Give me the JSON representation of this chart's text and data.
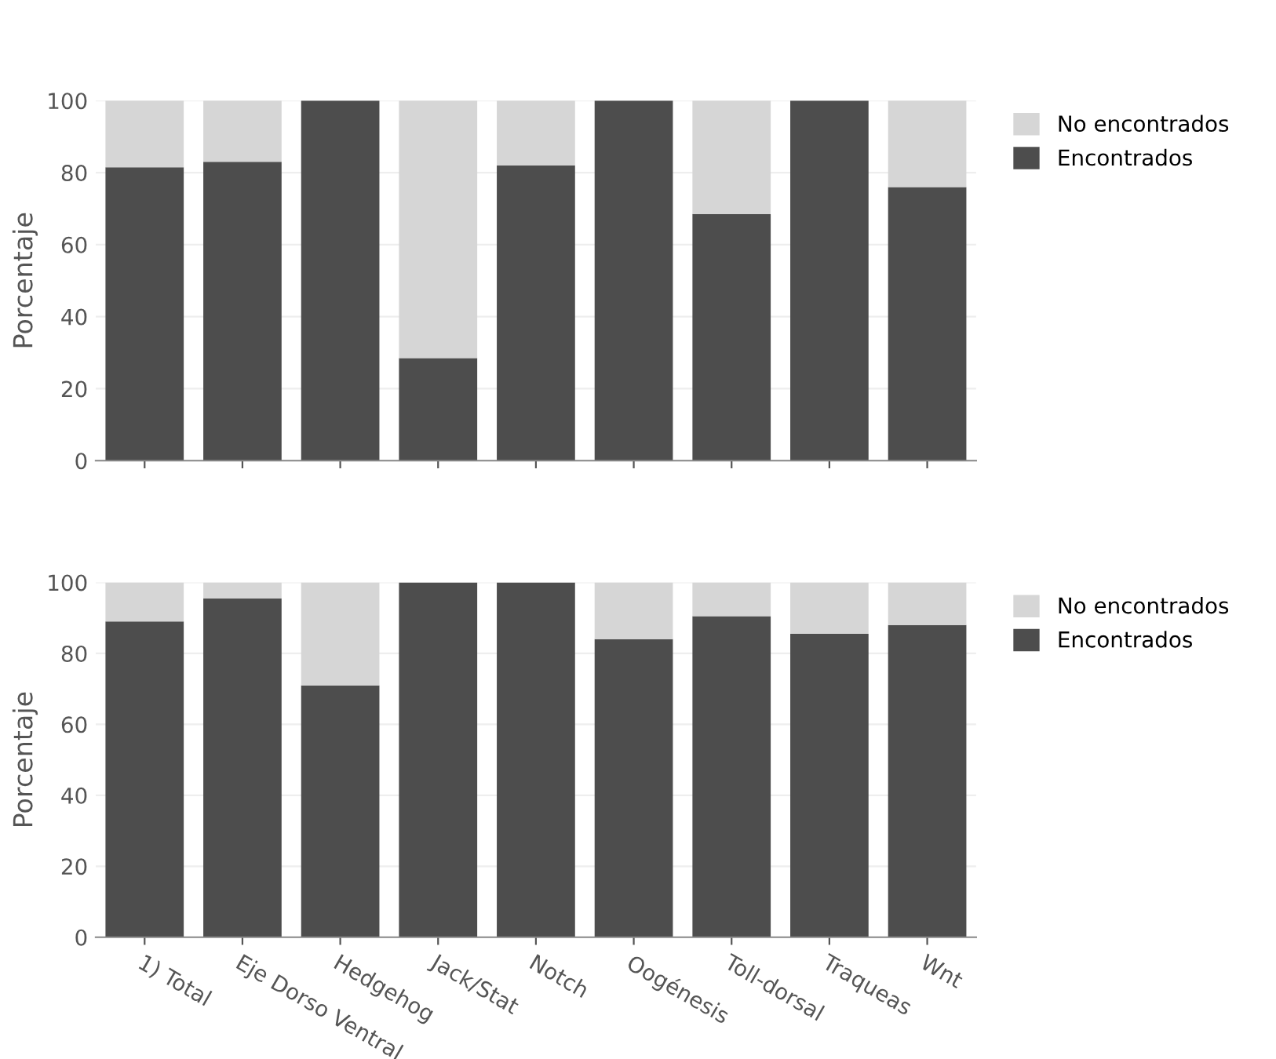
{
  "chart_data": [
    {
      "type": "bar",
      "stacked": true,
      "ylabel": "Porcentaje",
      "categories": [
        null,
        null,
        null,
        null,
        null,
        null,
        null,
        null,
        null
      ],
      "ylim": [
        0,
        100
      ],
      "yticks": [
        0,
        20,
        40,
        60,
        80,
        100
      ],
      "grid": "y",
      "legend": "top right",
      "tick_labels": "y",
      "series": [
        {
          "name": "Encontrados",
          "color": "#4d4d4d",
          "values": [
            81.5,
            83,
            100,
            28.5,
            82,
            100,
            68.5,
            100,
            76
          ]
        },
        {
          "name": "No encontrados",
          "color": "#d6d6d6",
          "values": [
            18.5,
            17,
            0,
            71.5,
            18,
            0,
            31.5,
            0,
            24
          ]
        }
      ]
    },
    {
      "type": "bar",
      "stacked": true,
      "ylabel": "Porcentaje",
      "categories": [
        "1) Total",
        "Eje Dorso Ventral",
        "Hedgehog",
        "Jack/Stat",
        "Notch",
        "Oogénesis",
        "Toll-dorsal",
        "Traqueas",
        "Wnt"
      ],
      "ylim": [
        0,
        100
      ],
      "yticks": [
        0,
        20,
        40,
        60,
        80,
        100
      ],
      "grid": "y",
      "legend": "top right",
      "series": [
        {
          "name": "Encontrados",
          "color": "#4d4d4d",
          "values": [
            89,
            95.5,
            71,
            100,
            100,
            84,
            90.5,
            85.5,
            88
          ]
        },
        {
          "name": "No encontrados",
          "color": "#d6d6d6",
          "values": [
            11,
            4.5,
            29,
            0,
            0,
            16,
            9.5,
            14.5,
            12
          ]
        }
      ]
    }
  ]
}
